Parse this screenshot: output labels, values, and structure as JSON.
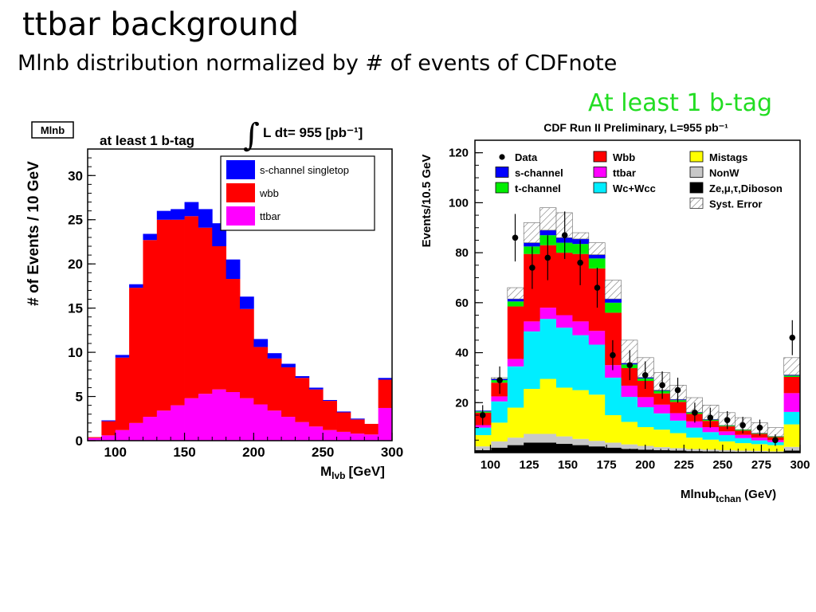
{
  "slide": {
    "title": "ttbar background",
    "subtitle": "Mlnb distribution normalized by # of events of CDFnote",
    "tag": "At least 1 b-tag"
  },
  "chart_data": [
    {
      "type": "bar",
      "stacked": true,
      "hist_label": "Mlnb",
      "title": "at least 1 b-tag",
      "lumi": "L dt= 955 [pb⁻¹]",
      "xlabel": "M",
      "xlabel_sub": "lvb",
      "xlabel_unit": "[GeV]",
      "ylabel": "# of Events / 10 GeV",
      "xlim": [
        80,
        300
      ],
      "ylim": [
        0,
        33
      ],
      "xticks": [
        "100",
        "150",
        "200",
        "250",
        "300"
      ],
      "yticks": [
        "0",
        "5",
        "10",
        "15",
        "20",
        "25",
        "30"
      ],
      "bin_edges": [
        80,
        90,
        100,
        110,
        120,
        130,
        140,
        150,
        160,
        170,
        180,
        190,
        200,
        210,
        220,
        230,
        240,
        250,
        260,
        270,
        280,
        290,
        300
      ],
      "series": [
        {
          "name": "ttbar",
          "color": "#ff00ff",
          "values": [
            0.3,
            0.6,
            1.2,
            2,
            2.7,
            3.4,
            4,
            4.8,
            5.3,
            5.8,
            5.5,
            4.8,
            4.1,
            3.4,
            2.7,
            2.1,
            1.6,
            1.2,
            1.0,
            0.8,
            0.7,
            3.7
          ]
        },
        {
          "name": "wbb",
          "color": "#ff0000",
          "values": [
            0.1,
            1.6,
            8.2,
            15.3,
            20,
            21.6,
            21,
            20.6,
            18.8,
            16.2,
            12.8,
            10.1,
            6.5,
            5.9,
            5.6,
            5.0,
            4.2,
            3.3,
            2.2,
            1.6,
            1.2,
            3.2
          ]
        },
        {
          "name": "s-channel singletop",
          "color": "#0000ff",
          "values": [
            0,
            0.1,
            0.3,
            0.4,
            0.7,
            1.0,
            1.2,
            1.6,
            2.1,
            2.6,
            2.2,
            1.4,
            0.9,
            0.6,
            0.4,
            0.2,
            0.2,
            0.1,
            0.1,
            0.1,
            0,
            0.2
          ]
        }
      ],
      "legend": [
        "s-channel singletop",
        "wbb",
        "ttbar"
      ],
      "legend_position": "top-right"
    },
    {
      "type": "bar",
      "stacked": true,
      "title": "CDF Run II Preliminary, L=955 pb⁻¹",
      "xlabel": "Mlnub",
      "xlabel_sub": "tchan",
      "xlabel_unit": "(GeV)",
      "ylabel": "Events/10.5 GeV",
      "xlim": [
        90,
        300
      ],
      "ylim": [
        0,
        125
      ],
      "xticks": [
        "100",
        "125",
        "150",
        "175",
        "200",
        "225",
        "250",
        "275",
        "300"
      ],
      "yticks": [
        "20",
        "40",
        "60",
        "80",
        "100",
        "120"
      ],
      "bin_edges": [
        90,
        100.5,
        111,
        121.5,
        132,
        142.5,
        153,
        163.5,
        174,
        184.5,
        195,
        205.5,
        216,
        226.5,
        237,
        247.5,
        258,
        268.5,
        279,
        289.5,
        300
      ],
      "series": [
        {
          "name": "Ze,μ,τ,Diboson",
          "color": "#000000",
          "values": [
            1,
            2,
            3,
            4,
            4,
            3.5,
            3,
            2.5,
            2,
            1.5,
            1.2,
            1,
            0.8,
            0.6,
            0.5,
            0.4,
            0.3,
            0.3,
            0.2,
            0.8
          ]
        },
        {
          "name": "NonW",
          "color": "#c8c8c8",
          "values": [
            1.5,
            2.5,
            3,
            3.5,
            3.5,
            3,
            2.5,
            2.2,
            2,
            1.8,
            1.5,
            1.2,
            1,
            0.8,
            0.7,
            0.6,
            0.5,
            0.4,
            0.3,
            1.5
          ]
        },
        {
          "name": "Mistags",
          "color": "#ffff00",
          "values": [
            4.5,
            7.5,
            12,
            18,
            22,
            19.5,
            19.5,
            18.5,
            11,
            9,
            7.5,
            7,
            6,
            4.6,
            4,
            3.5,
            3,
            2.7,
            2.5,
            9
          ]
        },
        {
          "name": "Wc+Wcc",
          "color": "#00eeff",
          "values": [
            3,
            8.5,
            16.5,
            23,
            24,
            24,
            22,
            20,
            15,
            10,
            8,
            6.5,
            5,
            4,
            3,
            2.5,
            2,
            1.5,
            1.2,
            5
          ]
        },
        {
          "name": "ttbar",
          "color": "#ff00ff",
          "values": [
            1,
            2,
            3,
            4,
            4.5,
            5,
            5.5,
            5.5,
            5,
            4.5,
            4,
            3.5,
            3,
            2.5,
            2,
            1.5,
            1.3,
            1.1,
            0.8,
            7.5
          ]
        },
        {
          "name": "Wbb",
          "color": "#ff0000",
          "values": [
            5,
            5.5,
            21,
            27,
            25,
            25,
            27,
            25,
            21,
            7,
            6.5,
            4.5,
            4.5,
            3,
            2.5,
            2,
            1.7,
            1.5,
            1.2,
            6.5
          ]
        },
        {
          "name": "t-channel",
          "color": "#00ee00",
          "values": [
            0.5,
            1,
            2,
            3,
            4,
            4,
            4,
            4,
            4,
            1.5,
            1,
            1,
            0.7,
            0.5,
            0.4,
            0.3,
            0.3,
            0.2,
            0.2,
            0.5
          ]
        },
        {
          "name": "s-channel",
          "color": "#0000ff",
          "values": [
            0.3,
            0.5,
            1,
            1.5,
            2,
            2,
            2,
            1.5,
            1.5,
            0.5,
            0.4,
            0.3,
            0.3,
            0.2,
            0.2,
            0.1,
            0.1,
            0.1,
            0.1,
            0.3
          ]
        }
      ],
      "syst_total": [
        16,
        30,
        66,
        92,
        98,
        96,
        88,
        84,
        69,
        45,
        38,
        32,
        27,
        22,
        19,
        16,
        14,
        12,
        10,
        38
      ],
      "data": {
        "name": "Data",
        "x": [
          95,
          106,
          116,
          127,
          137,
          148,
          158,
          169,
          179,
          190,
          200,
          211,
          221,
          232,
          242,
          253,
          263,
          274,
          284,
          295
        ],
        "y": [
          15,
          29,
          86,
          74,
          78,
          87,
          76,
          66,
          39,
          35,
          31,
          27,
          25,
          16,
          14,
          13,
          11,
          10,
          5,
          46
        ],
        "err": [
          4,
          5.5,
          9.5,
          8.5,
          9,
          9.5,
          9,
          8,
          6,
          6,
          5.5,
          5.5,
          5,
          4,
          4,
          3.6,
          3.3,
          3.2,
          2.3,
          7
        ]
      },
      "legend": [
        [
          "Data",
          "Wbb",
          "Mistags"
        ],
        [
          "s-channel",
          "ttbar",
          "NonW"
        ],
        [
          "t-channel",
          "Wc+Wcc",
          "Ze,μ,τ,Diboson"
        ],
        [
          "",
          "",
          "Syst. Error"
        ]
      ]
    }
  ]
}
